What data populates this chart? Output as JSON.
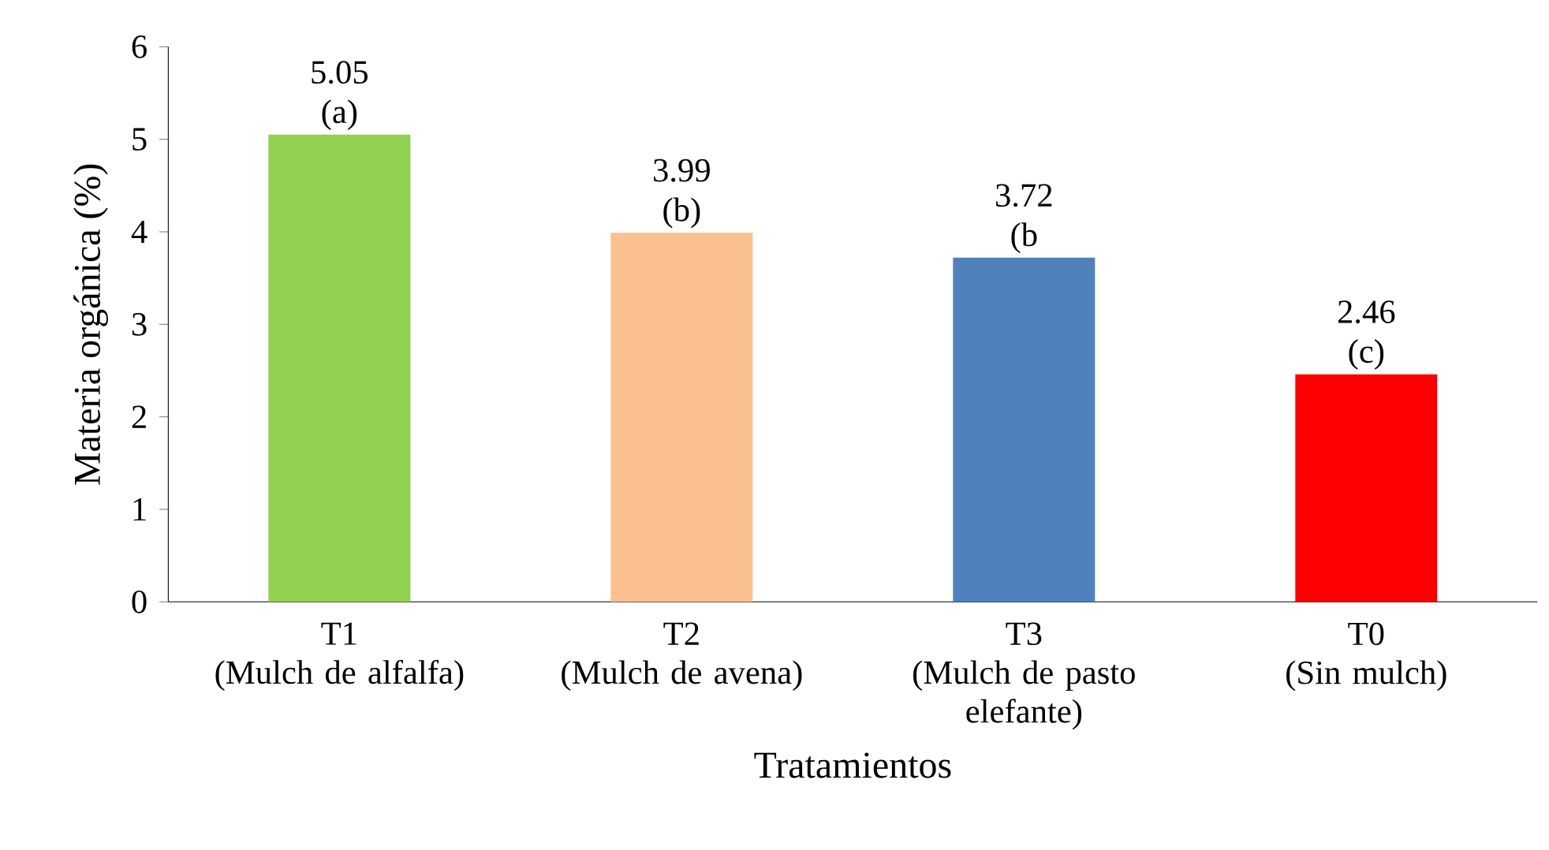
{
  "chart_data": {
    "type": "bar",
    "categories": [
      "T1\n(Mulch de alfalfa)",
      "T2\n(Mulch de avena)",
      "T3\n(Mulch de pasto\nelefante)",
      "T0\n(Sin mulch)"
    ],
    "values": [
      5.05,
      3.99,
      3.72,
      2.46
    ],
    "colors": [
      "#92d050",
      "#fac090",
      "#4f81bd",
      "#ff0000"
    ],
    "data_labels": true,
    "annotations": [
      "(a)",
      "(b)",
      "(b",
      "(c)"
    ],
    "xlabel": "Tratamientos",
    "ylabel": "Materia orgánica (%)",
    "ylim": [
      0,
      6
    ],
    "yticks": [
      0,
      1,
      2,
      3,
      4,
      5,
      6
    ],
    "grid": false
  }
}
